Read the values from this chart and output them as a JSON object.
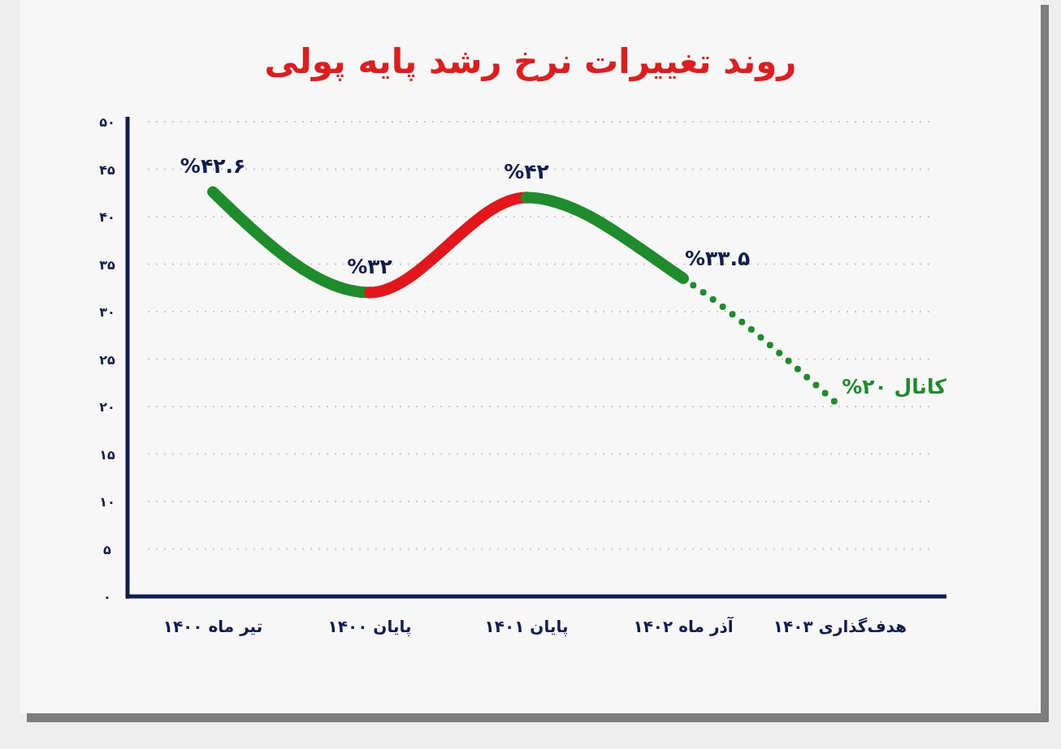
{
  "chart_data": {
    "type": "line",
    "title": "روند تغییرات نرخ رشد پایه پولی",
    "categories": [
      "تیر ماه ۱۴۰۰",
      "پایان ۱۴۰۰",
      "پایان ۱۴۰۱",
      "آذر ماه ۱۴۰۲",
      "هدف‌گذاری ۱۴۰۳"
    ],
    "series": [
      {
        "color": "#1e8c2a",
        "values": [
          42.6,
          32,
          null,
          null,
          null
        ],
        "value_labels": [
          "%۴۲.۶",
          "%۳۲",
          null,
          null,
          null
        ]
      },
      {
        "color": "#e3161b",
        "values": [
          null,
          32,
          42,
          null,
          null
        ],
        "value_labels": [
          null,
          null,
          "%۴۲",
          null,
          null
        ]
      },
      {
        "color": "#1e8c2a",
        "values": [
          null,
          null,
          42,
          33.5,
          null
        ],
        "value_labels": [
          null,
          null,
          null,
          "%۳۳.۵",
          null
        ]
      },
      {
        "color": "#1e8c2a",
        "values": [
          null,
          null,
          null,
          33.5,
          20
        ],
        "line_style": "dotted",
        "value_labels": [
          null,
          null,
          null,
          null,
          "کانال ۲۰%"
        ]
      }
    ],
    "ylim": [
      0,
      50
    ],
    "yticks": [
      {
        "value": 0,
        "label": "۰"
      },
      {
        "value": 5,
        "label": "۵"
      },
      {
        "value": 10,
        "label": "۱۰"
      },
      {
        "value": 15,
        "label": "۱۵"
      },
      {
        "value": 20,
        "label": "۲۰"
      },
      {
        "value": 25,
        "label": "۲۵"
      },
      {
        "value": 30,
        "label": "۳۰"
      },
      {
        "value": 35,
        "label": "۳۵"
      },
      {
        "value": 40,
        "label": "۴۰"
      },
      {
        "value": 45,
        "label": "۴۵"
      },
      {
        "value": 50,
        "label": "۵۰"
      }
    ],
    "grid": "y"
  }
}
